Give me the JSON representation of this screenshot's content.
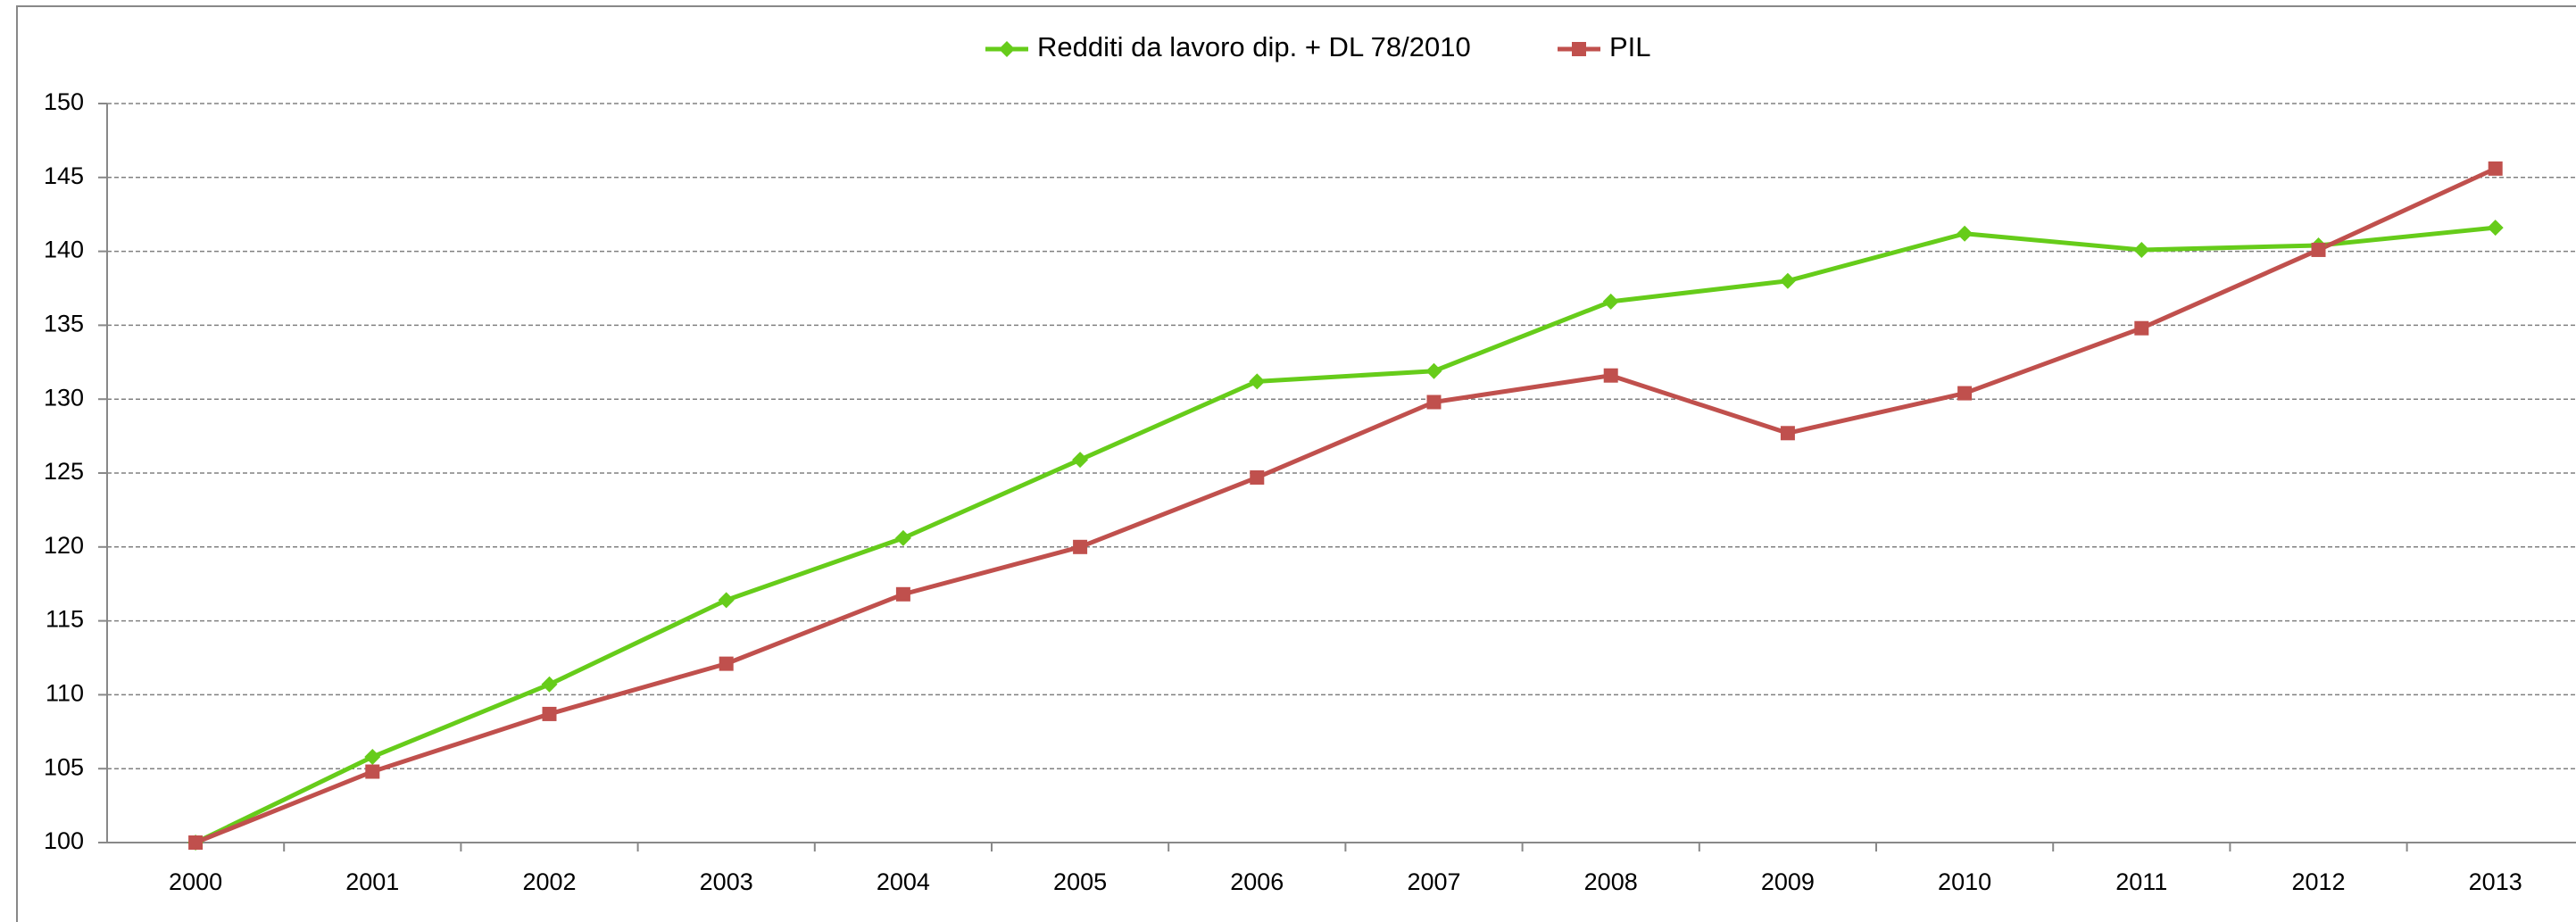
{
  "chart_data": {
    "type": "line",
    "categories": [
      "2000",
      "2001",
      "2002",
      "2003",
      "2004",
      "2005",
      "2006",
      "2007",
      "2008",
      "2009",
      "2010",
      "2011",
      "2012",
      "2013"
    ],
    "series": [
      {
        "name": "Redditi da lavoro dip. + DL 78/2010",
        "color": "#66cc1a",
        "marker": "diamond",
        "values": [
          100,
          105.8,
          110.7,
          116.4,
          120.6,
          125.9,
          131.2,
          131.9,
          136.6,
          138.0,
          141.2,
          140.1,
          140.4,
          141.6
        ]
      },
      {
        "name": "PIL",
        "color": "#c0504d",
        "marker": "square",
        "values": [
          100,
          104.8,
          108.7,
          112.1,
          116.8,
          120.0,
          124.7,
          129.8,
          131.6,
          127.7,
          130.4,
          134.8,
          140.1,
          145.6
        ]
      }
    ],
    "ylim": [
      100,
      150
    ],
    "yticks": [
      100,
      105,
      110,
      115,
      120,
      125,
      130,
      135,
      140,
      145,
      150
    ],
    "grid": true,
    "legend": "top"
  }
}
